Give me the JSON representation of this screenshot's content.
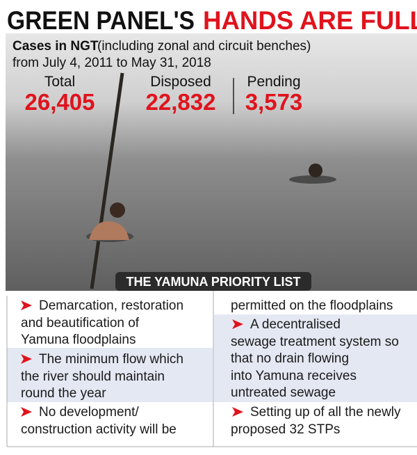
{
  "header": {
    "title_black": "GREEN PANEL'S",
    "title_red": "HANDS ARE FULL",
    "subtitle_bold": "Cases in NGT",
    "subtitle_rest": "(including zonal and circuit benches)",
    "subtitle_line2": "from July 4, 2011 to May 31, 2018"
  },
  "stats": [
    {
      "label": "Total",
      "value": "26,405"
    },
    {
      "label": "Disposed",
      "value": "22,832"
    },
    {
      "label": "Pending",
      "value": "3,573"
    }
  ],
  "banner": "THE YAMUNA PRIORITY LIST",
  "items": [
    {
      "lines": [
        "Demarcation, restoration",
        "and beautification of",
        "Yamuna floodplains"
      ]
    },
    {
      "lines": [
        "The minimum flow which",
        "the river should maintain",
        "round the year"
      ]
    },
    {
      "lines": [
        "No development/",
        "construction activity will be",
        "permitted on the floodplains"
      ]
    },
    {
      "lines": [
        "A decentralised",
        "sewage treatment system so",
        "that no drain flowing",
        "into Yamuna receives",
        "untreated sewage"
      ]
    },
    {
      "lines": [
        "Setting up of all the newly",
        "proposed 32 STPs"
      ]
    }
  ]
}
